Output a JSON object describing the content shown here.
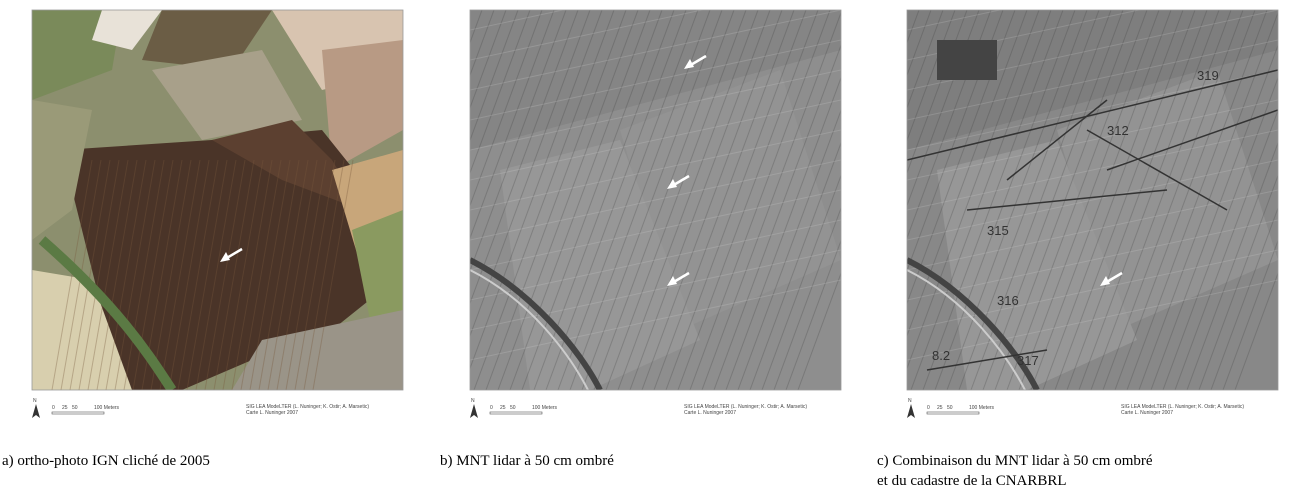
{
  "panels": [
    {
      "caption_lines": [
        "a) ortho-photo IGN cliché de 2005"
      ],
      "north": "N",
      "scale_labels": [
        "0",
        "25",
        "50",
        "100 Meters"
      ],
      "credit": [
        "SIG LEA ModeLTER (L. Nuninger; K. Ostir; A. Marsetic)",
        "Carte L. Nuninger 2007"
      ]
    },
    {
      "caption_lines": [
        "b) MNT lidar à 50 cm ombré"
      ],
      "north": "N",
      "scale_labels": [
        "0",
        "25",
        "50",
        "100 Meters"
      ],
      "credit": [
        "SIG LEA ModeLTER (L. Nuninger; K. Ostir; A. Marsetic)",
        "Carte L. Nuninger 2007"
      ]
    },
    {
      "caption_lines": [
        "c) Combinaison du MNT lidar à 50 cm ombré",
        "et du cadastre de la CNARBRL"
      ],
      "north": "N",
      "scale_labels": [
        "0",
        "25",
        "50",
        "100 Meters"
      ],
      "credit": [
        "SIG LEA ModeLTER (L. Nuninger; K. Ostir; A. Marsetic)",
        "Carte L. Nuninger 2007"
      ],
      "map_labels": [
        "319",
        "312",
        "315",
        "316",
        "317",
        "8.2"
      ]
    }
  ]
}
